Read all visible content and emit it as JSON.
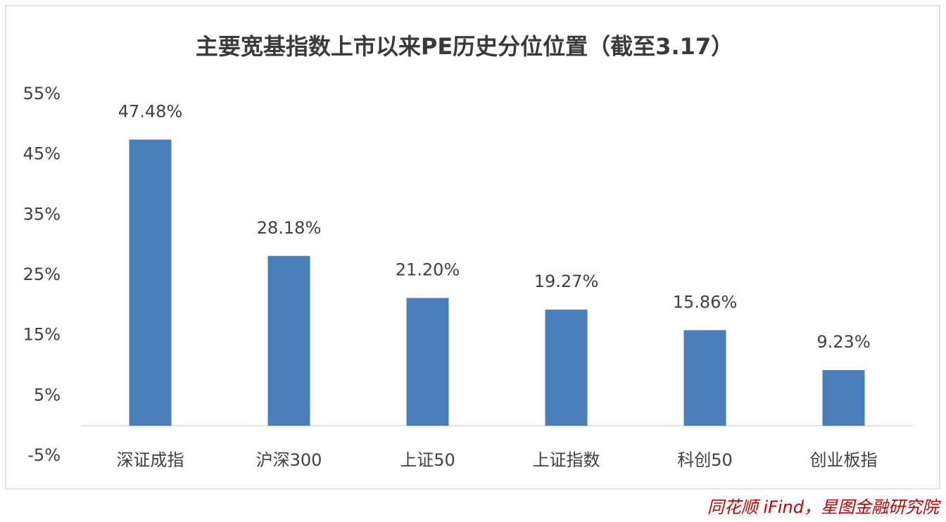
{
  "chart_data": {
    "type": "bar",
    "title": "主要宽基指数上市以来PE历史分位位置（截至3.17）",
    "categories": [
      "深证成指",
      "沪深300",
      "上证50",
      "上证指数",
      "科创50",
      "创业板指"
    ],
    "values": [
      47.48,
      28.18,
      21.2,
      19.27,
      15.86,
      9.23
    ],
    "value_labels": [
      "47.48%",
      "28.18%",
      "21.20%",
      "19.27%",
      "15.86%",
      "9.23%"
    ],
    "color": "#4a7ebb",
    "ylim": [
      -5,
      55
    ],
    "yticks": [
      {
        "value": -5,
        "label": "-5%"
      },
      {
        "value": 5,
        "label": "5%"
      },
      {
        "value": 15,
        "label": "15%"
      },
      {
        "value": 25,
        "label": "25%"
      },
      {
        "value": 35,
        "label": "35%"
      },
      {
        "value": 45,
        "label": "45%"
      },
      {
        "value": 55,
        "label": "55%"
      }
    ],
    "grid": false,
    "source": "同花顺 iFind，星图金融研究院"
  }
}
